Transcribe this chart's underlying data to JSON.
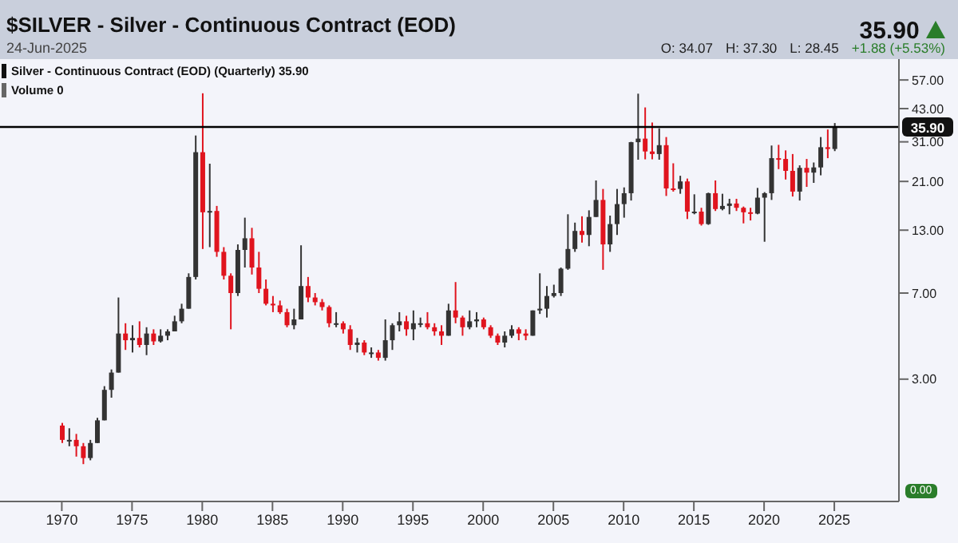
{
  "chart_data": {
    "type": "candlestick",
    "title": "$SILVER - Silver - Continuous Contract (EOD)",
    "log": "y",
    "annotations": [
      "24-Jun-2025",
      "35.90",
      "O: 34.07",
      "H: 37.30",
      "L: 28.45",
      "+1.88 (+5.53%)",
      "Silver - Continuous Contract (EOD) (Quarterly) 35.90",
      "Volume 0",
      "0.00"
    ],
    "ref_lines": [
      {
        "axis": "y",
        "value": 35.9,
        "label": "35.90",
        "color": "#000000"
      }
    ],
    "xlim": [
      1965.6,
      2029.6
    ],
    "xticks": [
      1970,
      1975,
      1980,
      1985,
      1990,
      1995,
      2000,
      2005,
      2010,
      2015,
      2020,
      2025
    ],
    "ylim": [
      0.9,
      70
    ],
    "yticks": [
      {
        "value": 3,
        "label": "3.00"
      },
      {
        "value": 7,
        "label": "7.00"
      },
      {
        "value": 13,
        "label": "13.00"
      },
      {
        "value": 21,
        "label": "21.00"
      },
      {
        "value": 31,
        "label": "31.00"
      },
      {
        "value": 43,
        "label": "43.00"
      },
      {
        "value": 57,
        "label": "57.00"
      }
    ],
    "series": [
      {
        "color": "#333333",
        "x": [
          1970.5,
          1972,
          1972.5,
          1973,
          1973.5,
          1974,
          1975,
          1976,
          1977,
          1977.5,
          1978,
          1978.5,
          1979,
          1979.5,
          1980.5,
          1982.5,
          1983,
          1986.5,
          1987,
          1989.5,
          1991,
          1992,
          1993,
          1993.5,
          1994,
          1995,
          1995.5,
          1997.5,
          1999,
          1999.5,
          2001.5,
          2002,
          2003.5,
          2004,
          2004.5,
          2005,
          2005.5,
          2006,
          2006.5,
          2007.5,
          2008,
          2009,
          2009.5,
          2010,
          2010.5,
          2011,
          2012.5,
          2014,
          2015,
          2016,
          2017,
          2017.5,
          2019.5,
          2020,
          2020.5,
          2022.5,
          2023.5,
          2024,
          2025
        ],
        "ohlc": [
          [
            1.65,
            1.85,
            1.55,
            1.65
          ],
          [
            1.38,
            1.65,
            1.35,
            1.6
          ],
          [
            1.6,
            2.05,
            1.6,
            2.0
          ],
          [
            2.0,
            2.8,
            2.0,
            2.7
          ],
          [
            2.7,
            3.3,
            2.5,
            3.2
          ],
          [
            3.2,
            6.7,
            3.2,
            4.7
          ],
          [
            4.4,
            5.1,
            3.9,
            4.5
          ],
          [
            4.2,
            5.0,
            3.8,
            4.7
          ],
          [
            4.35,
            4.9,
            4.3,
            4.6
          ],
          [
            4.6,
            4.9,
            4.4,
            4.8
          ],
          [
            4.8,
            5.6,
            4.8,
            5.3
          ],
          [
            5.3,
            6.3,
            5.2,
            6.0
          ],
          [
            6.0,
            8.5,
            6.0,
            8.2
          ],
          [
            8.2,
            33.0,
            8.0,
            28.0
          ],
          [
            15.5,
            25.0,
            11.0,
            15.7
          ],
          [
            7.0,
            11.3,
            6.8,
            10.7
          ],
          [
            10.7,
            14.7,
            9.0,
            12.0
          ],
          [
            5.1,
            6.0,
            4.9,
            5.4
          ],
          [
            5.4,
            11.2,
            5.4,
            7.5
          ],
          [
            5.2,
            5.8,
            5.0,
            5.2
          ],
          [
            4.2,
            4.5,
            3.9,
            4.3
          ],
          [
            3.9,
            4.1,
            3.7,
            3.9
          ],
          [
            3.7,
            5.4,
            3.6,
            4.4
          ],
          [
            4.4,
            5.2,
            4.0,
            5.1
          ],
          [
            5.1,
            5.8,
            4.8,
            5.3
          ],
          [
            4.9,
            5.9,
            4.4,
            5.2
          ],
          [
            5.2,
            5.5,
            5.0,
            5.2
          ],
          [
            4.6,
            6.3,
            4.6,
            5.9
          ],
          [
            5.0,
            5.9,
            4.9,
            5.3
          ],
          [
            5.3,
            5.8,
            5.0,
            5.4
          ],
          [
            4.3,
            4.8,
            4.1,
            4.6
          ],
          [
            4.6,
            5.1,
            4.5,
            4.9
          ],
          [
            4.6,
            5.9,
            4.6,
            5.9
          ],
          [
            5.9,
            8.5,
            5.7,
            6.0
          ],
          [
            6.0,
            7.5,
            5.5,
            6.8
          ],
          [
            6.8,
            7.6,
            6.7,
            7.0
          ],
          [
            7.0,
            9.0,
            6.8,
            8.9
          ],
          [
            8.9,
            15.2,
            8.8,
            10.8
          ],
          [
            10.8,
            14.0,
            10.5,
            12.9
          ],
          [
            12.4,
            15.8,
            11.1,
            14.8
          ],
          [
            14.8,
            21.2,
            14.8,
            17.5
          ],
          [
            11.3,
            15.0,
            10.5,
            13.8
          ],
          [
            13.8,
            19.5,
            12.4,
            16.8
          ],
          [
            16.8,
            19.8,
            14.7,
            18.7
          ],
          [
            18.7,
            31.0,
            17.4,
            30.9
          ],
          [
            30.9,
            49.8,
            26.0,
            32.0
          ],
          [
            27.5,
            35.4,
            26.0,
            30.0
          ],
          [
            19.5,
            22.2,
            18.6,
            21.0
          ],
          [
            15.6,
            18.5,
            15.2,
            15.6
          ],
          [
            13.8,
            18.8,
            13.7,
            18.7
          ],
          [
            16.0,
            18.6,
            15.8,
            16.5
          ],
          [
            16.5,
            17.7,
            15.2,
            16.9
          ],
          [
            15.3,
            19.7,
            15.2,
            17.9
          ],
          [
            17.9,
            18.9,
            11.6,
            18.7
          ],
          [
            18.7,
            29.9,
            17.5,
            26.4
          ],
          [
            19.0,
            24.6,
            17.4,
            24.0
          ],
          [
            22.9,
            25.3,
            20.7,
            24.1
          ],
          [
            24.1,
            32.5,
            22.3,
            29.4
          ],
          [
            28.9,
            37.3,
            28.3,
            35.9
          ]
        ]
      },
      {
        "color": "#e0141e",
        "x": [
          1970,
          1971,
          1971.5,
          1974.5,
          1975.5,
          1976.5,
          1980,
          1981,
          1981.5,
          1982,
          1983.5,
          1984,
          1984.5,
          1985,
          1985.5,
          1986,
          1987.5,
          1988,
          1988.5,
          1989,
          1990,
          1990.5,
          1991.5,
          1992.5,
          1994.5,
          1996,
          1996.5,
          1997,
          1998,
          1998.5,
          2000,
          2000.5,
          2001,
          2002.5,
          2003,
          2007,
          2008.5,
          2011.5,
          2012,
          2013,
          2013.5,
          2014.5,
          2015.5,
          2016.5,
          2018,
          2018.5,
          2019,
          2021,
          2021.5,
          2022,
          2023,
          2024.5
        ],
        "ohlc": [
          [
            1.9,
            1.95,
            1.6,
            1.65
          ],
          [
            1.65,
            1.75,
            1.4,
            1.55
          ],
          [
            1.55,
            1.6,
            1.3,
            1.38
          ],
          [
            4.7,
            5.2,
            4.0,
            4.4
          ],
          [
            4.5,
            5.3,
            4.1,
            4.2
          ],
          [
            4.7,
            4.9,
            4.2,
            4.35
          ],
          [
            28.0,
            50.0,
            10.8,
            15.5
          ],
          [
            15.7,
            16.5,
            10.0,
            10.5
          ],
          [
            10.5,
            11.0,
            8.0,
            8.3
          ],
          [
            8.3,
            8.5,
            4.9,
            7.0
          ],
          [
            12.0,
            13.3,
            8.4,
            9.0
          ],
          [
            9.0,
            10.5,
            7.0,
            7.3
          ],
          [
            7.3,
            8.0,
            6.2,
            6.3
          ],
          [
            6.3,
            6.8,
            5.8,
            6.2
          ],
          [
            6.2,
            6.5,
            5.7,
            5.8
          ],
          [
            5.8,
            6.0,
            5.0,
            5.1
          ],
          [
            7.5,
            8.2,
            6.4,
            6.7
          ],
          [
            6.7,
            7.0,
            6.2,
            6.4
          ],
          [
            6.4,
            6.6,
            5.9,
            6.1
          ],
          [
            6.1,
            6.2,
            5.0,
            5.2
          ],
          [
            5.2,
            5.3,
            4.7,
            4.9
          ],
          [
            4.9,
            5.1,
            4.0,
            4.2
          ],
          [
            4.3,
            4.4,
            3.8,
            3.9
          ],
          [
            3.9,
            4.0,
            3.6,
            3.7
          ],
          [
            5.3,
            5.6,
            4.6,
            4.9
          ],
          [
            5.2,
            5.8,
            4.9,
            5.0
          ],
          [
            5.0,
            5.2,
            4.6,
            4.8
          ],
          [
            4.8,
            5.1,
            4.2,
            4.6
          ],
          [
            5.9,
            7.8,
            5.2,
            5.5
          ],
          [
            5.5,
            5.6,
            4.6,
            5.0
          ],
          [
            5.4,
            5.5,
            4.9,
            5.0
          ],
          [
            5.0,
            5.1,
            4.5,
            4.6
          ],
          [
            4.6,
            4.7,
            4.2,
            4.3
          ],
          [
            4.9,
            5.0,
            4.4,
            4.7
          ],
          [
            4.7,
            4.9,
            4.4,
            4.6
          ],
          [
            12.9,
            14.9,
            11.5,
            12.4
          ],
          [
            17.5,
            19.5,
            8.8,
            11.3
          ],
          [
            32.0,
            43.5,
            26.1,
            28.2
          ],
          [
            28.2,
            37.5,
            26.1,
            27.5
          ],
          [
            30.0,
            32.5,
            18.2,
            19.6
          ],
          [
            19.6,
            25.1,
            19.0,
            19.5
          ],
          [
            21.0,
            21.6,
            14.5,
            15.6
          ],
          [
            15.6,
            16.2,
            13.6,
            13.8
          ],
          [
            18.7,
            21.2,
            15.7,
            16.0
          ],
          [
            16.9,
            17.7,
            15.7,
            16.2
          ],
          [
            16.2,
            16.4,
            13.9,
            15.5
          ],
          [
            15.5,
            16.2,
            14.3,
            15.3
          ],
          [
            26.4,
            30.1,
            23.7,
            26.2
          ],
          [
            26.2,
            28.5,
            21.4,
            23.3
          ],
          [
            23.3,
            27.5,
            18.1,
            19.0
          ],
          [
            24.0,
            26.2,
            19.9,
            22.9
          ],
          [
            29.4,
            35.0,
            26.4,
            28.9
          ]
        ]
      }
    ]
  }
}
